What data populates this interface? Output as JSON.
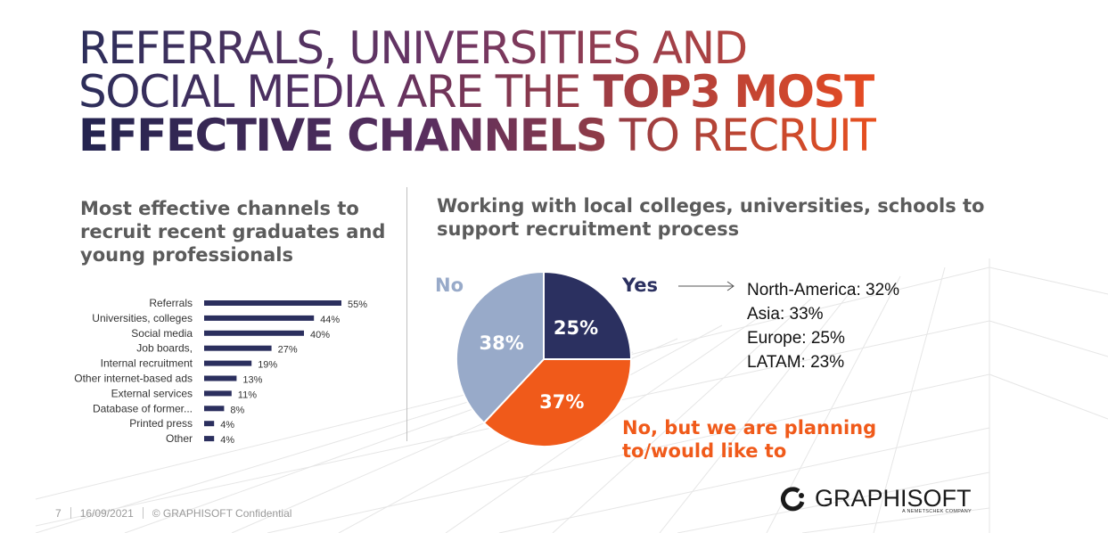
{
  "headline": {
    "line1": "REFERRALS, UNIVERSITIES AND",
    "line2_normal": "SOCIAL MEDIA ARE THE ",
    "line2_bold": "TOP3 MOST",
    "line3_bold": "EFFECTIVE CHANNELS",
    "line3_normal": " TO RECRUIT"
  },
  "left_subtitle": "Most effective channels to recruit recent graduates and young professionals",
  "right_subtitle": "Working with local colleges, universities, schools to support recruitment process",
  "chart_data": [
    {
      "type": "bar",
      "orientation": "horizontal",
      "title": "Most effective channels to recruit recent graduates and young professionals",
      "categories": [
        "Referrals",
        "Universities, colleges",
        "Social media",
        "Job boards,",
        "Internal recruitment",
        "Other internet-based ads",
        "External services",
        "Database of former...",
        "Printed press",
        "Other"
      ],
      "values": [
        55,
        44,
        40,
        27,
        19,
        13,
        11,
        8,
        4,
        4
      ],
      "value_labels": [
        "55%",
        "44%",
        "40%",
        "27%",
        "19%",
        "13%",
        "11%",
        "8%",
        "4%",
        "4%"
      ],
      "unit": "%",
      "xlim": [
        0,
        55
      ],
      "grid": false,
      "bar_color": "#2b2f5e"
    },
    {
      "type": "pie",
      "title": "Working with local colleges, universities, schools to support recruitment process",
      "slices": [
        {
          "name": "Yes",
          "value": 25,
          "label": "25%",
          "color": "#2b3060"
        },
        {
          "name": "No, but we are planning to/would like to",
          "value": 37,
          "label": "37%",
          "color": "#f05a1a"
        },
        {
          "name": "No",
          "value": 38,
          "label": "38%",
          "color": "#98aac9"
        }
      ]
    }
  ],
  "pie_labels": {
    "no": "No",
    "yes": "Yes",
    "planning": "No, but we are planning to/would like to"
  },
  "yes_breakdown": [
    "North-America: 32%",
    "Asia: 33%",
    "Europe: 25%",
    "LATAM: 23%"
  ],
  "footer": {
    "page": "7",
    "date": "16/09/2021",
    "confidential": "© GRAPHISOFT Confidential"
  },
  "logo": {
    "name": "GRAPHISOFT",
    "tagline": "A NEMETSCHEK COMPANY",
    "icon": "graphisoft-logo-icon"
  },
  "colors": {
    "navy": "#2b3060",
    "orange": "#f05a1a",
    "light_blue": "#98aac9"
  }
}
